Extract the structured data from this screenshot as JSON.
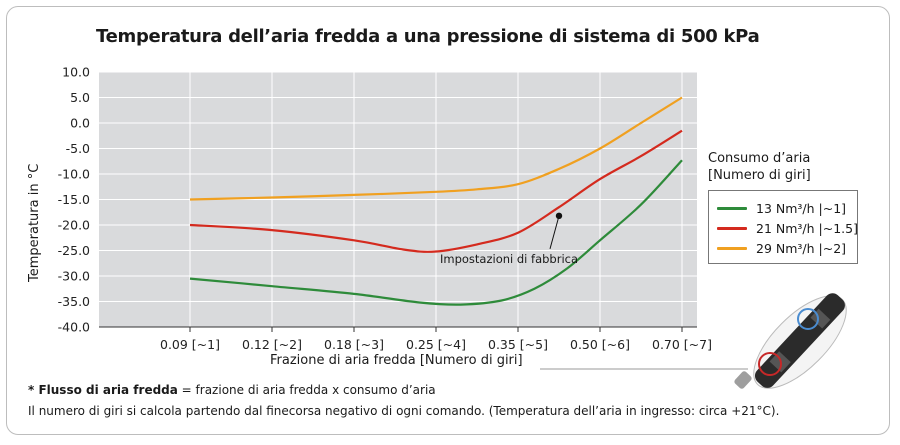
{
  "chart_data": {
    "type": "line",
    "title": "Temperatura dell’aria fredda a una pressione di sistema di 500 kPa",
    "xlabel": "Frazione di aria fredda [Numero di giri]",
    "ylabel": "Temperatura in °C",
    "categories": [
      "0.09 [~1]",
      "0.12 [~2]",
      "0.18 [~3]",
      "0.25 [~4]",
      "0.35 [~5]",
      "0.50 [~6]",
      "0.70 [~7]"
    ],
    "yticks": [
      "10.0",
      "5.0",
      "0.0",
      "-5.0",
      "-10.0",
      "-15.0",
      "-20.0",
      "-25.0",
      "-30.0",
      "-35.0",
      "-40.0"
    ],
    "ylim": [
      -40,
      10
    ],
    "grid": true,
    "legend_title": "Consumo d’aria [Numero di giri]",
    "legend_position": "right",
    "series": [
      {
        "name": "13 Nm³/h |~1]",
        "color": "#2e8b3a",
        "points": [
          [
            0,
            -30.5
          ],
          [
            1,
            -32
          ],
          [
            2,
            -33.5
          ],
          [
            2.8,
            -35.2
          ],
          [
            3.3,
            -35.6
          ],
          [
            3.8,
            -34.8
          ],
          [
            4.2,
            -32.5
          ],
          [
            4.6,
            -28.5
          ],
          [
            5,
            -23
          ],
          [
            5.5,
            -16
          ],
          [
            6,
            -7.3
          ]
        ]
      },
      {
        "name": "21 Nm³/h |~1.5]",
        "color": "#d42a1e",
        "points": [
          [
            0,
            -20
          ],
          [
            1,
            -21
          ],
          [
            2,
            -23
          ],
          [
            2.6,
            -24.8
          ],
          [
            3,
            -25.2
          ],
          [
            3.5,
            -23.8
          ],
          [
            4,
            -21.5
          ],
          [
            4.5,
            -16.5
          ],
          [
            5,
            -11
          ],
          [
            5.5,
            -6.5
          ],
          [
            6,
            -1.5
          ]
        ]
      },
      {
        "name": "29 Nm³/h |~2]",
        "color": "#f0a020",
        "points": [
          [
            0,
            -15
          ],
          [
            1,
            -14.6
          ],
          [
            2,
            -14.1
          ],
          [
            3,
            -13.5
          ],
          [
            3.5,
            -13
          ],
          [
            4,
            -12
          ],
          [
            4.5,
            -9
          ],
          [
            5,
            -5
          ],
          [
            5.5,
            0
          ],
          [
            6,
            5
          ]
        ]
      }
    ],
    "annotation": {
      "text": "Impostazioni di fabbrica",
      "point": [
        4.5,
        -18.2
      ]
    }
  },
  "footnote": {
    "bold": "* Flusso di aria fredda",
    "rest": " = frazione di aria fredda x consumo d’aria",
    "line2": "Il numero di giri si calcola partendo dal finecorsa negativo di ogni comando. (Temperatura dell’aria in ingresso: circa +21°C)."
  },
  "colors": {
    "plot_bg": "#d9dadc",
    "grid": "#ffffff",
    "axis": "#333333"
  }
}
